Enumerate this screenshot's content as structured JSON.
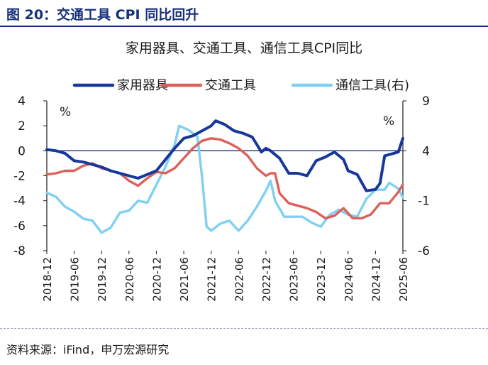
{
  "figure_title": "图 20：交通工具 CPI 同比回升",
  "source": "资料来源：iFind，申万宏源研究",
  "chart_data": {
    "type": "line",
    "title": "家用器具、交通工具、通信工具CPI同比",
    "left_unit": "%",
    "right_unit": "%",
    "x_tick_labels": [
      "2018-12",
      "2019-06",
      "2019-12",
      "2020-06",
      "2020-12",
      "2021-06",
      "2021-12",
      "2022-06",
      "2022-12",
      "2023-06",
      "2023-12",
      "2024-06",
      "2024-12",
      "2025-06"
    ],
    "ylim_left": [
      -8,
      4
    ],
    "yticks_left": [
      4,
      2,
      0,
      -2,
      -4,
      -6,
      -8
    ],
    "ylim_right": [
      -6,
      9
    ],
    "yticks_right": [
      9,
      4,
      -1,
      -6
    ],
    "series": [
      {
        "name": "家用器具",
        "axis": "left",
        "color": "#17379a",
        "points": [
          [
            "2018-12",
            0.1
          ],
          [
            "2019-02",
            0.0
          ],
          [
            "2019-04",
            -0.2
          ],
          [
            "2019-06",
            -0.8
          ],
          [
            "2019-08",
            -0.9
          ],
          [
            "2019-10",
            -1.1
          ],
          [
            "2019-12",
            -1.3
          ],
          [
            "2020-02",
            -1.6
          ],
          [
            "2020-04",
            -1.8
          ],
          [
            "2020-06",
            -2.0
          ],
          [
            "2020-08",
            -2.2
          ],
          [
            "2020-10",
            -1.9
          ],
          [
            "2020-12",
            -1.6
          ],
          [
            "2021-02",
            -0.7
          ],
          [
            "2021-04",
            0.2
          ],
          [
            "2021-06",
            1.0
          ],
          [
            "2021-08",
            1.2
          ],
          [
            "2021-10",
            1.6
          ],
          [
            "2021-12",
            2.0
          ],
          [
            "2022-01",
            2.4
          ],
          [
            "2022-03",
            2.1
          ],
          [
            "2022-05",
            1.6
          ],
          [
            "2022-07",
            1.4
          ],
          [
            "2022-09",
            1.1
          ],
          [
            "2022-10",
            0.5
          ],
          [
            "2022-11",
            -0.1
          ],
          [
            "2022-12",
            0.2
          ],
          [
            "2023-01",
            0.0
          ],
          [
            "2023-03",
            -0.6
          ],
          [
            "2023-05",
            -1.8
          ],
          [
            "2023-07",
            -1.8
          ],
          [
            "2023-09",
            -2.0
          ],
          [
            "2023-11",
            -0.8
          ],
          [
            "2024-01",
            -0.5
          ],
          [
            "2024-03",
            -0.1
          ],
          [
            "2024-05",
            -0.7
          ],
          [
            "2024-06",
            -1.6
          ],
          [
            "2024-08",
            -1.9
          ],
          [
            "2024-10",
            -3.2
          ],
          [
            "2024-12",
            -3.1
          ],
          [
            "2025-01",
            -2.6
          ],
          [
            "2025-02",
            -0.4
          ],
          [
            "2025-04",
            -0.2
          ],
          [
            "2025-05",
            -0.1
          ],
          [
            "2025-06",
            1.0
          ]
        ]
      },
      {
        "name": "交通工具",
        "axis": "left",
        "color": "#d9625b",
        "points": [
          [
            "2018-12",
            -1.9
          ],
          [
            "2019-02",
            -1.8
          ],
          [
            "2019-04",
            -1.6
          ],
          [
            "2019-06",
            -1.6
          ],
          [
            "2019-08",
            -1.2
          ],
          [
            "2019-10",
            -1.0
          ],
          [
            "2019-12",
            -1.4
          ],
          [
            "2020-02",
            -1.6
          ],
          [
            "2020-04",
            -1.8
          ],
          [
            "2020-06",
            -2.4
          ],
          [
            "2020-08",
            -2.8
          ],
          [
            "2020-10",
            -2.2
          ],
          [
            "2020-12",
            -1.7
          ],
          [
            "2021-02",
            -1.8
          ],
          [
            "2021-04",
            -1.4
          ],
          [
            "2021-06",
            -0.6
          ],
          [
            "2021-08",
            0.2
          ],
          [
            "2021-10",
            0.8
          ],
          [
            "2021-12",
            1.0
          ],
          [
            "2022-02",
            0.9
          ],
          [
            "2022-04",
            0.6
          ],
          [
            "2022-06",
            0.2
          ],
          [
            "2022-08",
            -0.4
          ],
          [
            "2022-10",
            -1.4
          ],
          [
            "2022-12",
            -2.0
          ],
          [
            "2023-01",
            -1.8
          ],
          [
            "2023-02",
            -1.8
          ],
          [
            "2023-03",
            -3.4
          ],
          [
            "2023-05",
            -4.2
          ],
          [
            "2023-07",
            -4.4
          ],
          [
            "2023-09",
            -4.6
          ],
          [
            "2023-11",
            -4.9
          ],
          [
            "2024-01",
            -5.4
          ],
          [
            "2024-03",
            -5.2
          ],
          [
            "2024-05",
            -4.6
          ],
          [
            "2024-07",
            -5.4
          ],
          [
            "2024-09",
            -5.4
          ],
          [
            "2024-11",
            -5.1
          ],
          [
            "2025-01",
            -4.2
          ],
          [
            "2025-03",
            -4.2
          ],
          [
            "2025-05",
            -3.3
          ],
          [
            "2025-06",
            -2.7
          ]
        ]
      },
      {
        "name": "通信工具(右)",
        "axis": "right",
        "color": "#7fd0f2",
        "points": [
          [
            "2018-12",
            -0.2
          ],
          [
            "2019-02",
            -0.6
          ],
          [
            "2019-04",
            -1.6
          ],
          [
            "2019-06",
            -2.1
          ],
          [
            "2019-08",
            -2.8
          ],
          [
            "2019-10",
            -3.0
          ],
          [
            "2019-12",
            -4.2
          ],
          [
            "2020-02",
            -3.7
          ],
          [
            "2020-04",
            -2.2
          ],
          [
            "2020-06",
            -2.0
          ],
          [
            "2020-08",
            -1.0
          ],
          [
            "2020-10",
            -1.2
          ],
          [
            "2020-12",
            0.6
          ],
          [
            "2021-02",
            2.4
          ],
          [
            "2021-04",
            4.6
          ],
          [
            "2021-05",
            6.5
          ],
          [
            "2021-07",
            6.1
          ],
          [
            "2021-09",
            5.4
          ],
          [
            "2021-10",
            1.4
          ],
          [
            "2021-11",
            -3.6
          ],
          [
            "2021-12",
            -4.0
          ],
          [
            "2022-02",
            -3.3
          ],
          [
            "2022-04",
            -3.0
          ],
          [
            "2022-06",
            -4.0
          ],
          [
            "2022-08",
            -3.0
          ],
          [
            "2022-10",
            -1.6
          ],
          [
            "2022-12",
            0.0
          ],
          [
            "2023-01",
            1.0
          ],
          [
            "2023-02",
            -1.0
          ],
          [
            "2023-04",
            -2.6
          ],
          [
            "2023-06",
            -2.6
          ],
          [
            "2023-08",
            -2.6
          ],
          [
            "2023-10",
            -3.2
          ],
          [
            "2023-12",
            -3.6
          ],
          [
            "2024-02",
            -2.4
          ],
          [
            "2024-04",
            -1.9
          ],
          [
            "2024-06",
            -2.4
          ],
          [
            "2024-08",
            -2.6
          ],
          [
            "2024-10",
            -0.8
          ],
          [
            "2024-12",
            0.1
          ],
          [
            "2025-02",
            0.1
          ],
          [
            "2025-03",
            0.8
          ],
          [
            "2025-05",
            0.2
          ],
          [
            "2025-06",
            -0.7
          ]
        ]
      }
    ],
    "legend_position": "top",
    "grid": false
  }
}
